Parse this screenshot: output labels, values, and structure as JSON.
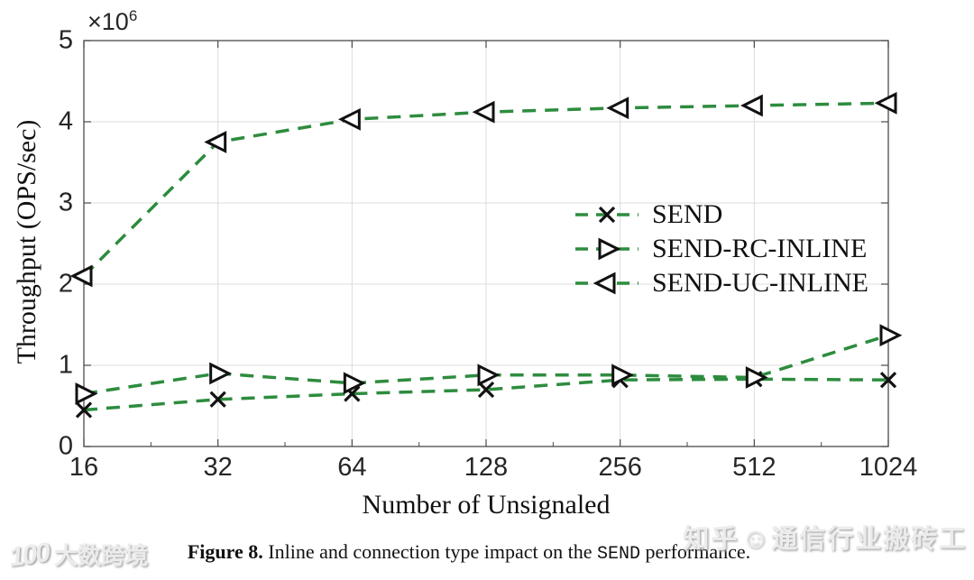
{
  "figure": {
    "y_multiplier_base": "×10",
    "y_multiplier_exp": "6"
  },
  "chart_data": {
    "type": "line",
    "x_scale": "log2",
    "x": [
      16,
      32,
      64,
      128,
      256,
      512,
      1024
    ],
    "xlabel": "Number of Unsignaled",
    "ylabel": "Throughput (OPS/sec)",
    "ylim": [
      0,
      5000000
    ],
    "y_tick_values": [
      0,
      1000000,
      2000000,
      3000000,
      4000000,
      5000000
    ],
    "y_tick_labels": [
      "0",
      "1",
      "2",
      "3",
      "4",
      "5"
    ],
    "y_tick_multiplier": "×10^6",
    "grid": true,
    "legend_position": "center-right",
    "line_color": "#2d8c3e",
    "line_style": "dashed",
    "marker_stroke": "#111111",
    "series": [
      {
        "name": "SEND",
        "marker": "x-cross",
        "values": [
          450000,
          580000,
          650000,
          700000,
          820000,
          830000,
          820000
        ]
      },
      {
        "name": "SEND-RC-INLINE",
        "marker": "triangle-right",
        "values": [
          650000,
          900000,
          780000,
          880000,
          880000,
          850000,
          1370000
        ]
      },
      {
        "name": "SEND-UC-INLINE",
        "marker": "triangle-left",
        "values": [
          2100000,
          3750000,
          4030000,
          4120000,
          4170000,
          4200000,
          4230000
        ]
      }
    ]
  },
  "caption": {
    "label": "Figure 8.",
    "before": " Inline and connection type impact on the ",
    "code": "SEND",
    "after": " performance."
  },
  "watermarks": {
    "left_logo": "100",
    "left_text": "大数跨境",
    "right_prefix": "知乎",
    "right_icon": "☺",
    "right_text": "通信行业搬砖工"
  }
}
